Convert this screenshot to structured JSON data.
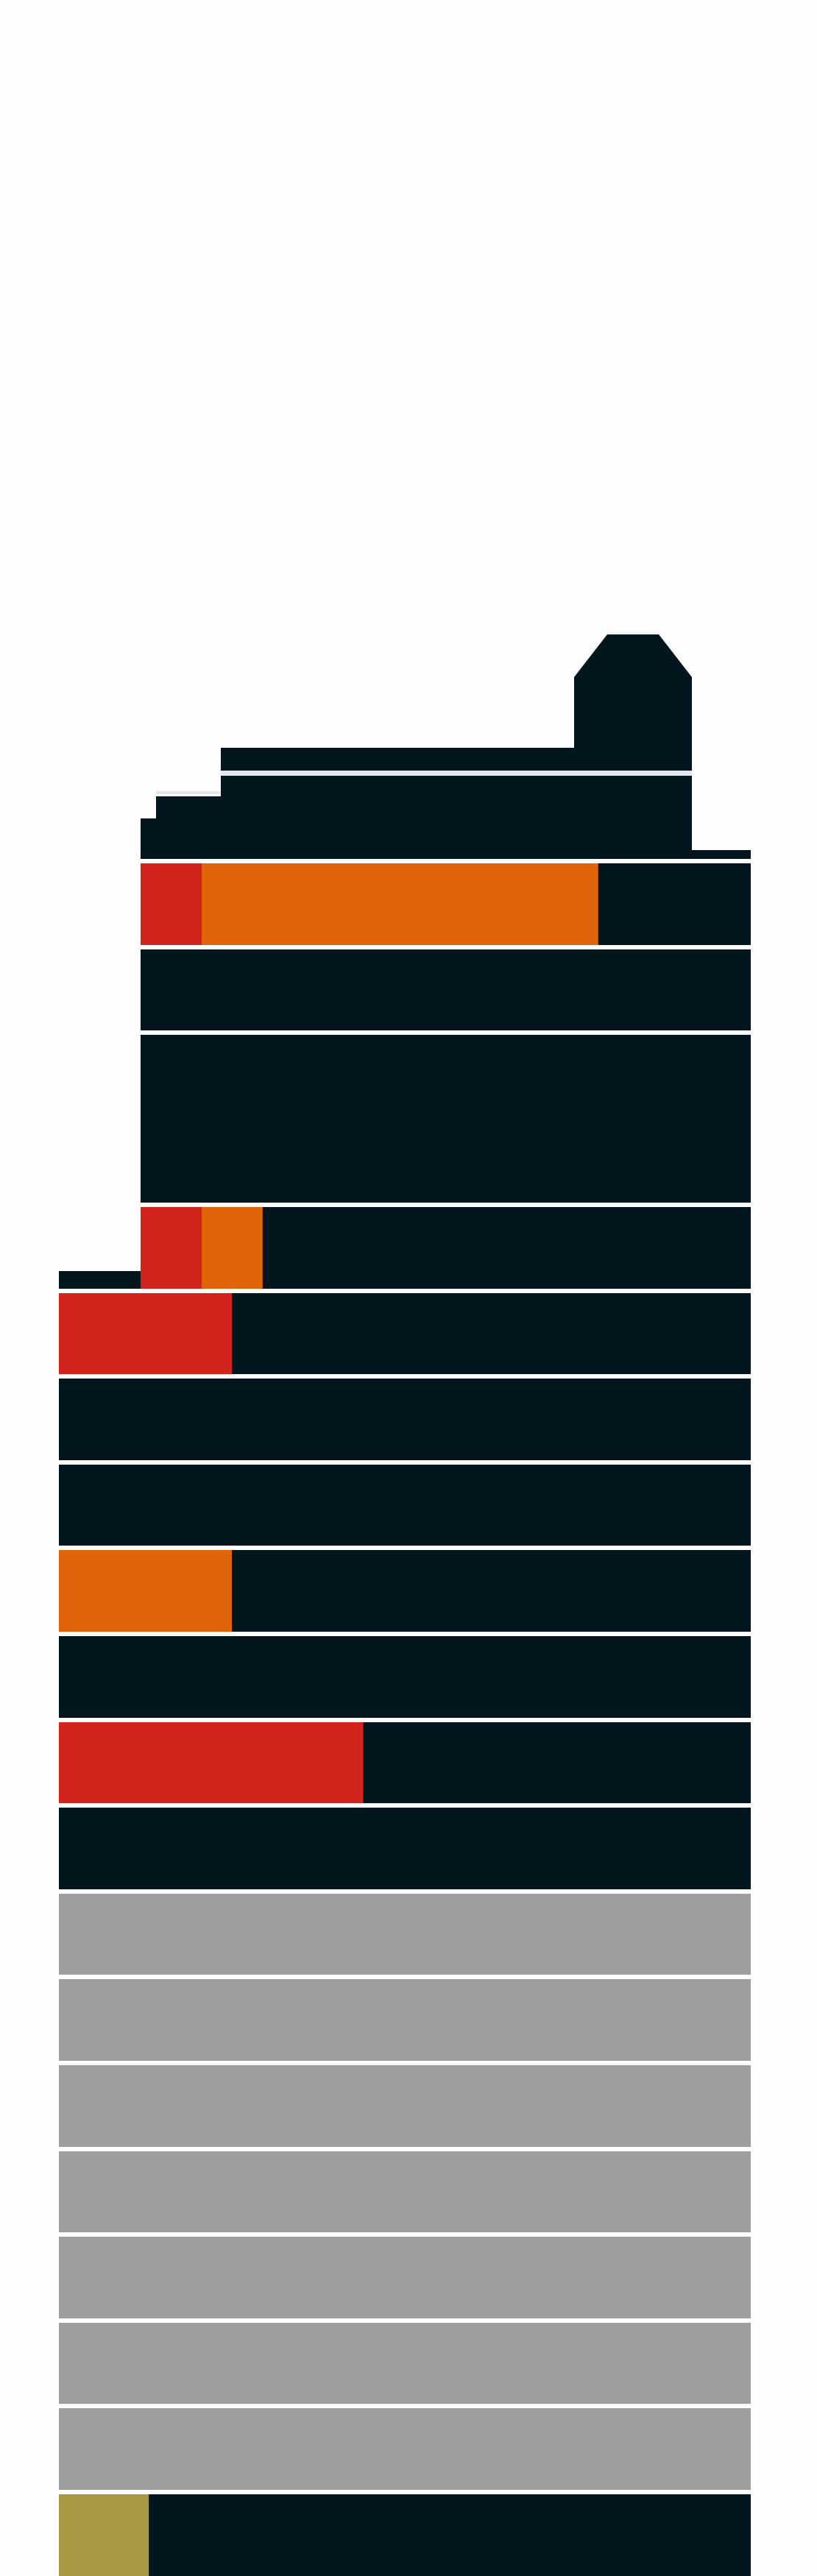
{
  "colors": {
    "background": "#fdfdfd",
    "building": "#03151d",
    "separator": "#e6e6ee",
    "inactive": "#9e9e9e",
    "critical": "#d2231c",
    "warning": "#e2640a",
    "caution": "#a89843"
  },
  "floors": [
    {
      "state": "active",
      "segments": [
        {
          "level": "critical",
          "fraction": 0.1
        },
        {
          "level": "warning",
          "fraction": 0.65
        }
      ]
    },
    {
      "state": "active",
      "segments": []
    },
    {
      "state": "active",
      "segments": []
    },
    {
      "state": "active",
      "segments": [
        {
          "level": "critical",
          "fraction": 0.1
        },
        {
          "level": "warning",
          "fraction": 0.1
        }
      ]
    },
    {
      "state": "active",
      "segments": [
        {
          "level": "critical",
          "fraction": 0.25
        }
      ]
    },
    {
      "state": "active",
      "segments": []
    },
    {
      "state": "active",
      "segments": []
    },
    {
      "state": "active",
      "segments": [
        {
          "level": "warning",
          "fraction": 0.25
        }
      ]
    },
    {
      "state": "active",
      "segments": []
    },
    {
      "state": "active",
      "segments": [
        {
          "level": "critical",
          "fraction": 0.44
        }
      ]
    },
    {
      "state": "active",
      "segments": []
    },
    {
      "state": "inactive",
      "segments": []
    },
    {
      "state": "inactive",
      "segments": []
    },
    {
      "state": "inactive",
      "segments": []
    },
    {
      "state": "inactive",
      "segments": []
    },
    {
      "state": "inactive",
      "segments": []
    },
    {
      "state": "inactive",
      "segments": []
    },
    {
      "state": "inactive",
      "segments": []
    },
    {
      "state": "active",
      "segments": [
        {
          "level": "caution",
          "fraction": 0.13
        }
      ]
    }
  ]
}
